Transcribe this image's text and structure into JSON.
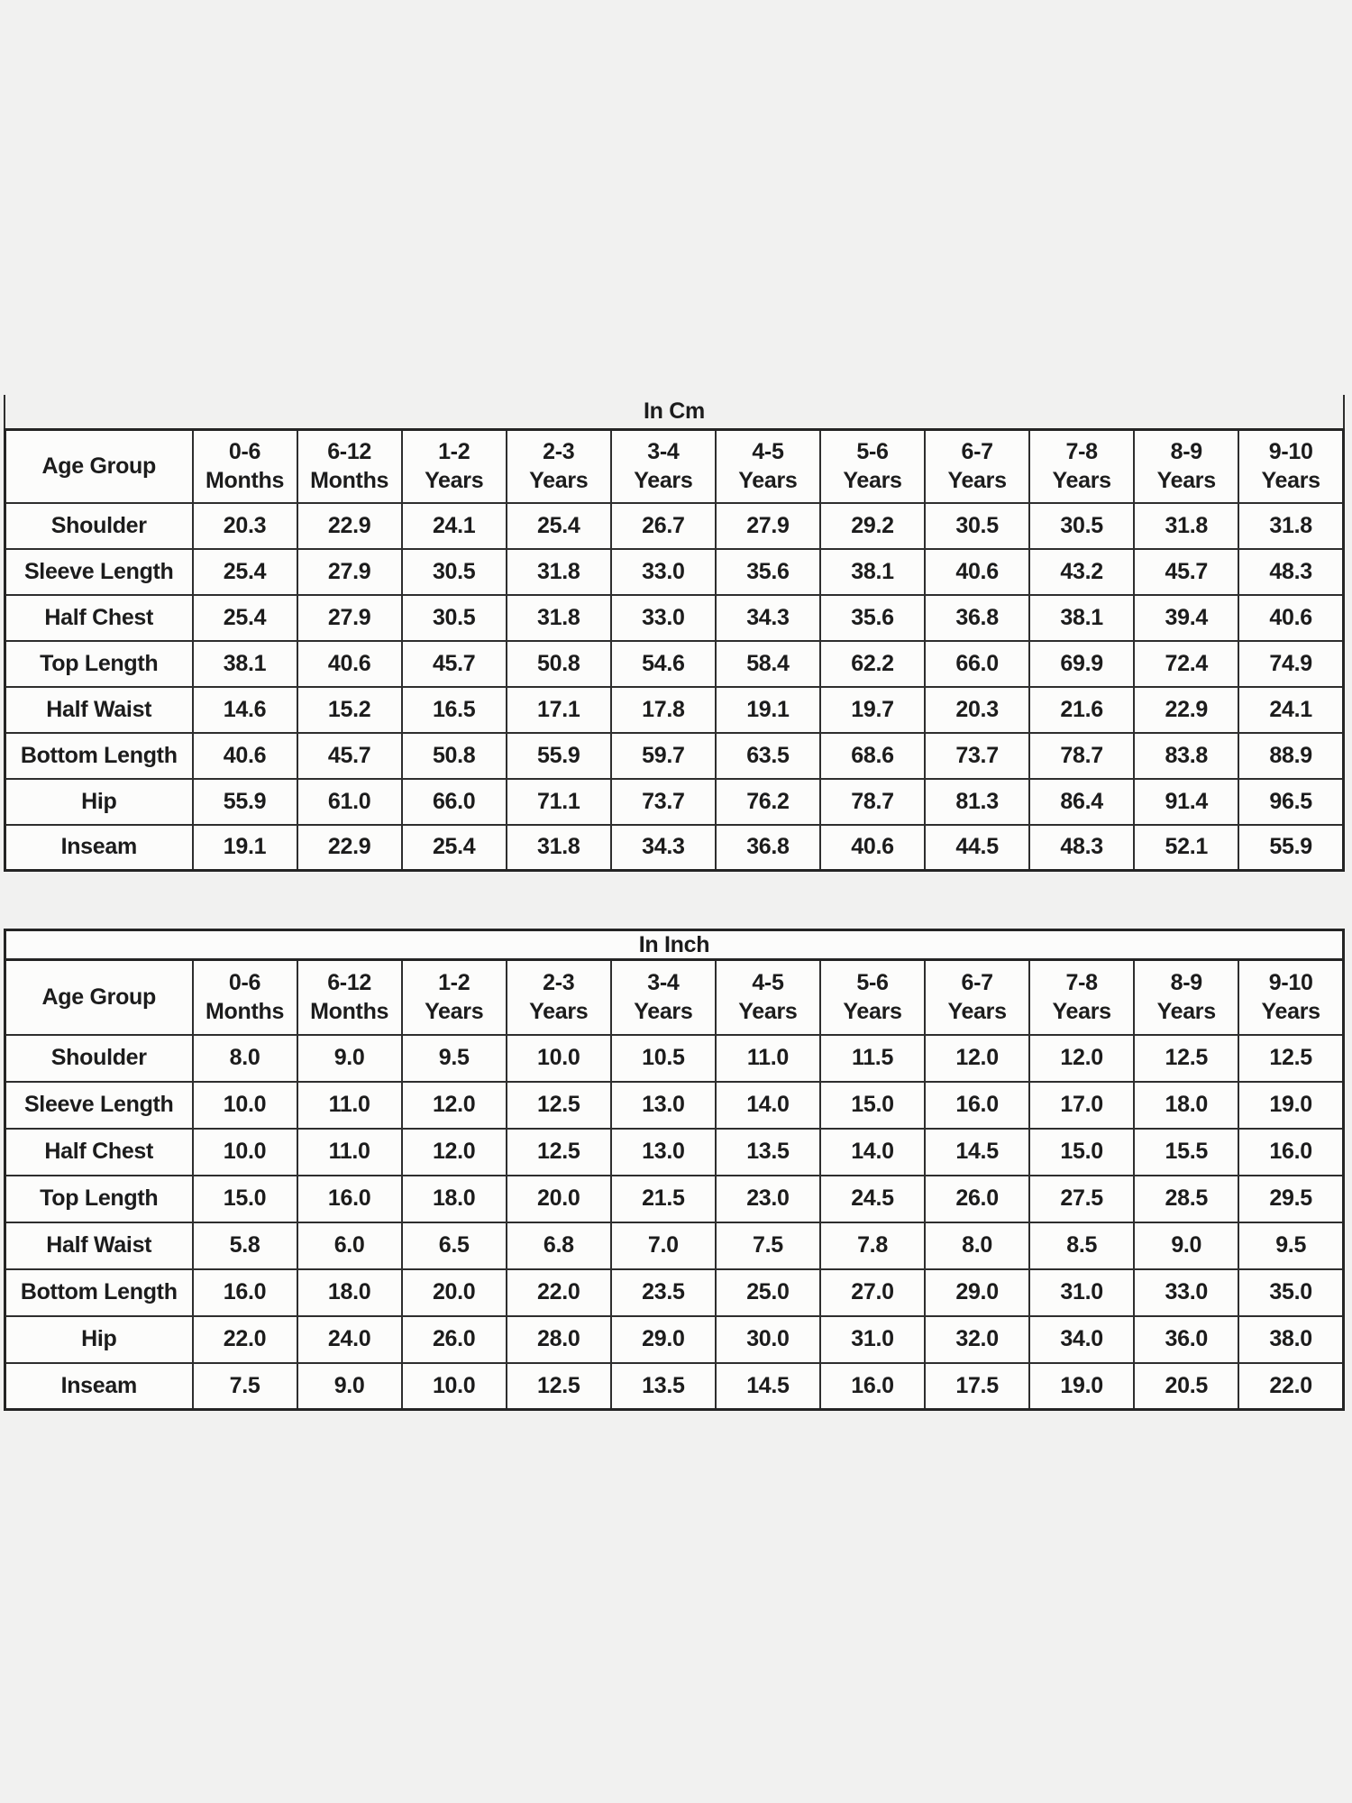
{
  "page": {
    "background": "#f1f1f0",
    "cell_background": "#fcfcfb",
    "border_color": "#2e2e2e",
    "text_color": "#1c1c1c"
  },
  "tables": [
    {
      "title": "In Cm",
      "header_label": "Age Group",
      "columns": [
        [
          "0-6",
          "Months"
        ],
        [
          "6-12",
          "Months"
        ],
        [
          "1-2",
          "Years"
        ],
        [
          "2-3",
          "Years"
        ],
        [
          "3-4",
          "Years"
        ],
        [
          "4-5",
          "Years"
        ],
        [
          "5-6",
          "Years"
        ],
        [
          "6-7",
          "Years"
        ],
        [
          "7-8",
          "Years"
        ],
        [
          "8-9",
          "Years"
        ],
        [
          "9-10",
          "Years"
        ]
      ],
      "rows": [
        {
          "label": "Shoulder",
          "values": [
            "20.3",
            "22.9",
            "24.1",
            "25.4",
            "26.7",
            "27.9",
            "29.2",
            "30.5",
            "30.5",
            "31.8",
            "31.8"
          ]
        },
        {
          "label": "Sleeve Length",
          "values": [
            "25.4",
            "27.9",
            "30.5",
            "31.8",
            "33.0",
            "35.6",
            "38.1",
            "40.6",
            "43.2",
            "45.7",
            "48.3"
          ]
        },
        {
          "label": "Half Chest",
          "values": [
            "25.4",
            "27.9",
            "30.5",
            "31.8",
            "33.0",
            "34.3",
            "35.6",
            "36.8",
            "38.1",
            "39.4",
            "40.6"
          ]
        },
        {
          "label": "Top Length",
          "values": [
            "38.1",
            "40.6",
            "45.7",
            "50.8",
            "54.6",
            "58.4",
            "62.2",
            "66.0",
            "69.9",
            "72.4",
            "74.9"
          ]
        },
        {
          "label": "Half Waist",
          "values": [
            "14.6",
            "15.2",
            "16.5",
            "17.1",
            "17.8",
            "19.1",
            "19.7",
            "20.3",
            "21.6",
            "22.9",
            "24.1"
          ]
        },
        {
          "label": "Bottom Length",
          "values": [
            "40.6",
            "45.7",
            "50.8",
            "55.9",
            "59.7",
            "63.5",
            "68.6",
            "73.7",
            "78.7",
            "83.8",
            "88.9"
          ]
        },
        {
          "label": "Hip",
          "values": [
            "55.9",
            "61.0",
            "66.0",
            "71.1",
            "73.7",
            "76.2",
            "78.7",
            "81.3",
            "86.4",
            "91.4",
            "96.5"
          ]
        },
        {
          "label": "Inseam",
          "values": [
            "19.1",
            "22.9",
            "25.4",
            "31.8",
            "34.3",
            "36.8",
            "40.6",
            "44.5",
            "48.3",
            "52.1",
            "55.9"
          ]
        }
      ]
    },
    {
      "title": "In Inch",
      "header_label": "Age Group",
      "columns": [
        [
          "0-6",
          "Months"
        ],
        [
          "6-12",
          "Months"
        ],
        [
          "1-2",
          "Years"
        ],
        [
          "2-3",
          "Years"
        ],
        [
          "3-4",
          "Years"
        ],
        [
          "4-5",
          "Years"
        ],
        [
          "5-6",
          "Years"
        ],
        [
          "6-7",
          "Years"
        ],
        [
          "7-8",
          "Years"
        ],
        [
          "8-9",
          "Years"
        ],
        [
          "9-10",
          "Years"
        ]
      ],
      "rows": [
        {
          "label": "Shoulder",
          "values": [
            "8.0",
            "9.0",
            "9.5",
            "10.0",
            "10.5",
            "11.0",
            "11.5",
            "12.0",
            "12.0",
            "12.5",
            "12.5"
          ]
        },
        {
          "label": "Sleeve Length",
          "values": [
            "10.0",
            "11.0",
            "12.0",
            "12.5",
            "13.0",
            "14.0",
            "15.0",
            "16.0",
            "17.0",
            "18.0",
            "19.0"
          ]
        },
        {
          "label": "Half Chest",
          "values": [
            "10.0",
            "11.0",
            "12.0",
            "12.5",
            "13.0",
            "13.5",
            "14.0",
            "14.5",
            "15.0",
            "15.5",
            "16.0"
          ]
        },
        {
          "label": "Top Length",
          "values": [
            "15.0",
            "16.0",
            "18.0",
            "20.0",
            "21.5",
            "23.0",
            "24.5",
            "26.0",
            "27.5",
            "28.5",
            "29.5"
          ]
        },
        {
          "label": "Half Waist",
          "values": [
            "5.8",
            "6.0",
            "6.5",
            "6.8",
            "7.0",
            "7.5",
            "7.8",
            "8.0",
            "8.5",
            "9.0",
            "9.5"
          ]
        },
        {
          "label": "Bottom Length",
          "values": [
            "16.0",
            "18.0",
            "20.0",
            "22.0",
            "23.5",
            "25.0",
            "27.0",
            "29.0",
            "31.0",
            "33.0",
            "35.0"
          ]
        },
        {
          "label": "Hip",
          "values": [
            "22.0",
            "24.0",
            "26.0",
            "28.0",
            "29.0",
            "30.0",
            "31.0",
            "32.0",
            "34.0",
            "36.0",
            "38.0"
          ]
        },
        {
          "label": "Inseam",
          "values": [
            "7.5",
            "9.0",
            "10.0",
            "12.5",
            "13.5",
            "14.5",
            "16.0",
            "17.5",
            "19.0",
            "20.5",
            "22.0"
          ]
        }
      ]
    }
  ]
}
